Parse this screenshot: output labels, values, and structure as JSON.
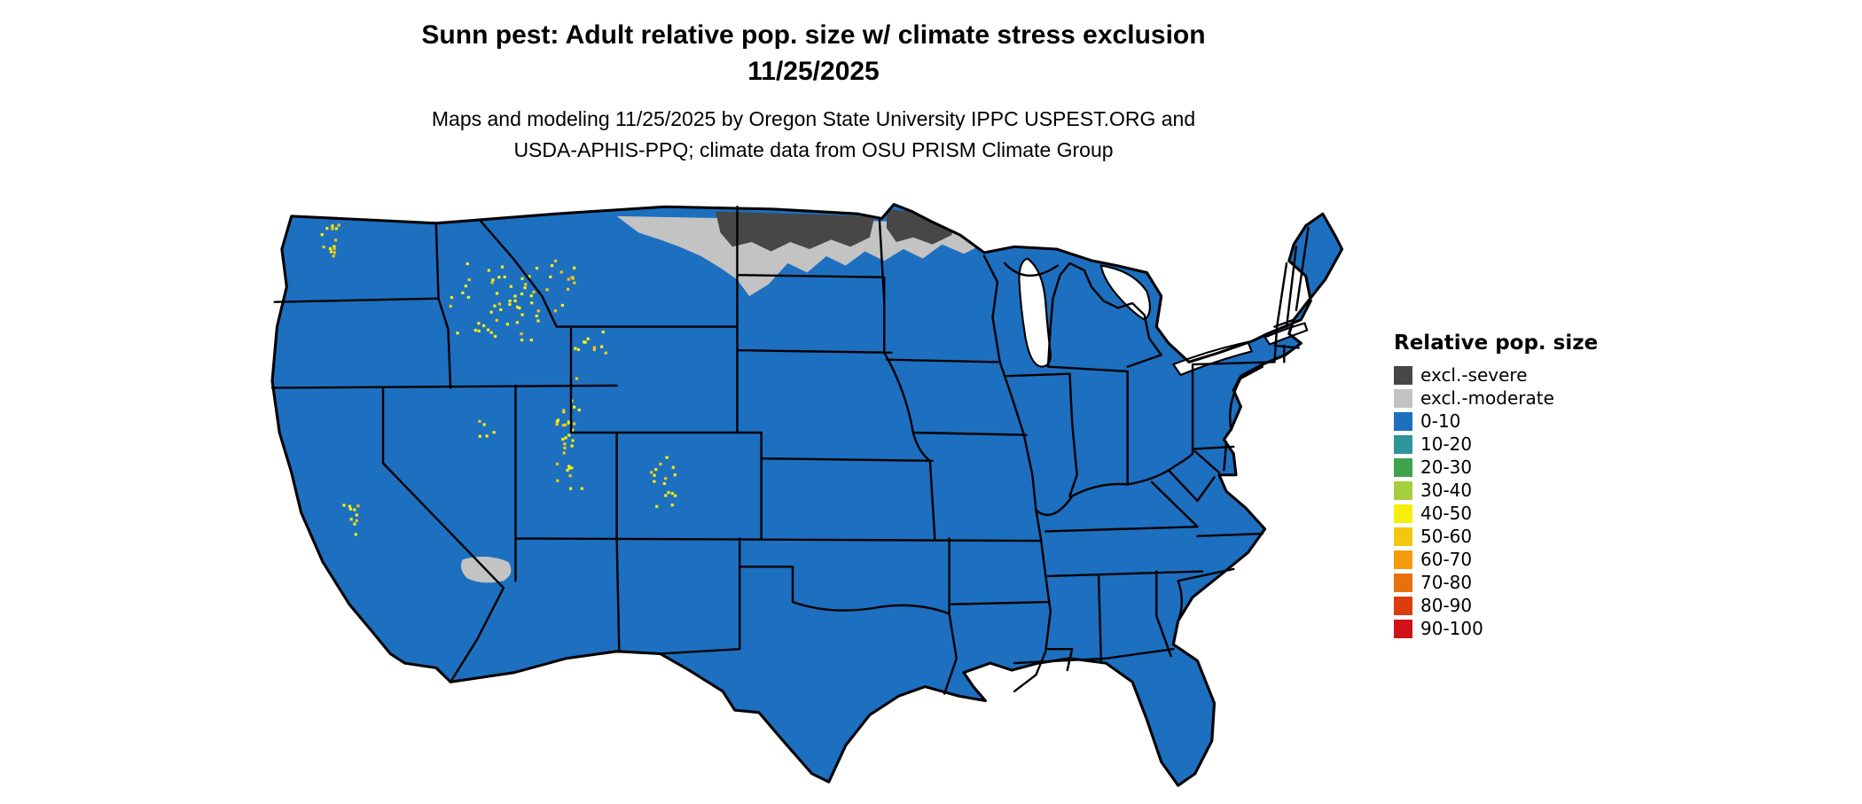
{
  "title": {
    "line1": "Sunn pest: Adult relative pop. size w/ climate stress exclusion",
    "line2": "11/25/2025"
  },
  "subtitle": {
    "line1": "Maps and modeling 11/25/2025 by Oregon State University IPPC USPEST.ORG and",
    "line2": "USDA-APHIS-PPQ; climate data from OSU PRISM Climate Group"
  },
  "legend": {
    "title": "Relative pop. size",
    "items": [
      {
        "label": "excl.-severe",
        "color": "#474747"
      },
      {
        "label": "excl.-moderate",
        "color": "#c3c3c3"
      },
      {
        "label": "0-10",
        "color": "#1d6fc0"
      },
      {
        "label": "10-20",
        "color": "#2e9599"
      },
      {
        "label": "20-30",
        "color": "#3fa34d"
      },
      {
        "label": "30-40",
        "color": "#a5cf3e"
      },
      {
        "label": "40-50",
        "color": "#f6ef0b"
      },
      {
        "label": "50-60",
        "color": "#f2c70f"
      },
      {
        "label": "60-70",
        "color": "#f59b0c"
      },
      {
        "label": "70-80",
        "color": "#e8700e"
      },
      {
        "label": "80-90",
        "color": "#dc3d0f"
      },
      {
        "label": "90-100",
        "color": "#ce1216"
      }
    ]
  },
  "map": {
    "region": "Continental United States",
    "dominant_class": "0-10",
    "exclusion_severe_areas": "northern North Dakota and northern Minnesota",
    "exclusion_moderate_areas": "band along US-Canada border from Montana through Minnesota; northwestern Arizona",
    "mountain_speckle_classes": "40-50 and 50-60 speckles over Cascades and Rocky Mountains"
  }
}
